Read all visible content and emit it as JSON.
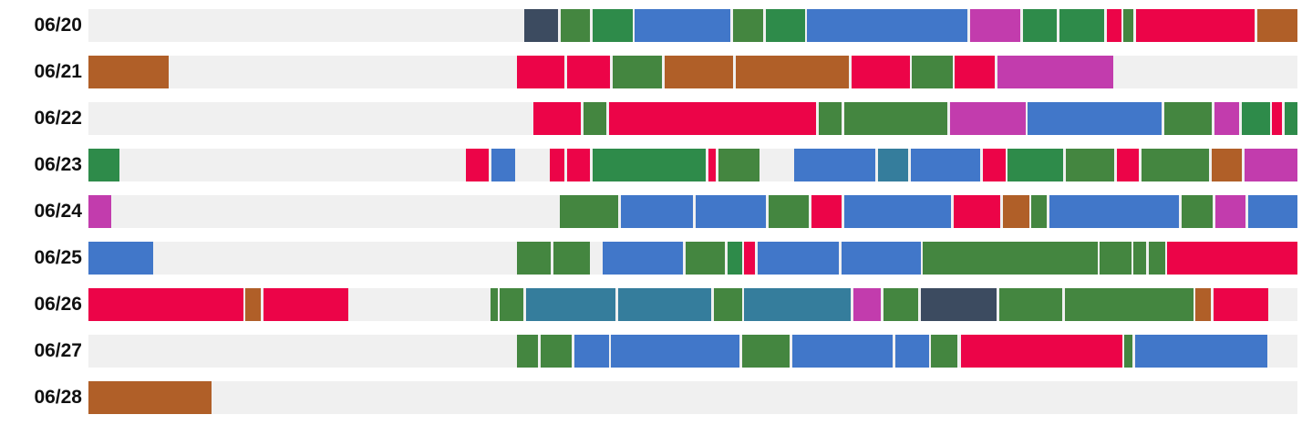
{
  "chart_data": {
    "type": "timeline",
    "x_unit": "hours",
    "xlim": [
      0,
      24
    ],
    "track_color": "#f0f0f0",
    "palette": {
      "red": "#ec0448",
      "green": "#2e8b4a",
      "olive": "#448640",
      "blue": "#4177c9",
      "teal": "#357d9c",
      "magenta": "#c23cad",
      "brown": "#b05f28",
      "slate": "#3c4b60"
    },
    "days": [
      {
        "date": "06/20",
        "segments": [
          {
            "start": 8.65,
            "end": 9.33,
            "color": "slate"
          },
          {
            "start": 9.38,
            "end": 9.95,
            "color": "olive"
          },
          {
            "start": 10.0,
            "end": 10.8,
            "color": "green"
          },
          {
            "start": 10.85,
            "end": 12.75,
            "color": "blue"
          },
          {
            "start": 12.8,
            "end": 13.4,
            "color": "olive"
          },
          {
            "start": 13.45,
            "end": 14.22,
            "color": "green"
          },
          {
            "start": 14.27,
            "end": 17.45,
            "color": "blue"
          },
          {
            "start": 17.5,
            "end": 18.5,
            "color": "magenta"
          },
          {
            "start": 18.55,
            "end": 19.22,
            "color": "green"
          },
          {
            "start": 19.27,
            "end": 20.17,
            "color": "green"
          },
          {
            "start": 20.22,
            "end": 20.5,
            "color": "red"
          },
          {
            "start": 20.55,
            "end": 20.75,
            "color": "olive"
          },
          {
            "start": 20.8,
            "end": 23.15,
            "color": "red"
          },
          {
            "start": 23.2,
            "end": 24.0,
            "color": "brown"
          }
        ]
      },
      {
        "date": "06/21",
        "segments": [
          {
            "start": 0.0,
            "end": 1.6,
            "color": "brown"
          },
          {
            "start": 8.5,
            "end": 9.45,
            "color": "red"
          },
          {
            "start": 9.5,
            "end": 10.35,
            "color": "red"
          },
          {
            "start": 10.4,
            "end": 11.38,
            "color": "olive"
          },
          {
            "start": 11.43,
            "end": 12.8,
            "color": "brown"
          },
          {
            "start": 12.85,
            "end": 15.1,
            "color": "brown"
          },
          {
            "start": 15.15,
            "end": 16.3,
            "color": "red"
          },
          {
            "start": 16.35,
            "end": 17.15,
            "color": "olive"
          },
          {
            "start": 17.2,
            "end": 18.0,
            "color": "red"
          },
          {
            "start": 18.05,
            "end": 20.35,
            "color": "magenta"
          }
        ]
      },
      {
        "date": "06/22",
        "segments": [
          {
            "start": 8.83,
            "end": 9.78,
            "color": "red"
          },
          {
            "start": 9.83,
            "end": 10.28,
            "color": "olive"
          },
          {
            "start": 10.33,
            "end": 14.45,
            "color": "red"
          },
          {
            "start": 14.5,
            "end": 14.95,
            "color": "olive"
          },
          {
            "start": 15.0,
            "end": 17.05,
            "color": "olive"
          },
          {
            "start": 17.1,
            "end": 18.6,
            "color": "magenta"
          },
          {
            "start": 18.65,
            "end": 21.3,
            "color": "blue"
          },
          {
            "start": 21.35,
            "end": 22.3,
            "color": "olive"
          },
          {
            "start": 22.35,
            "end": 22.85,
            "color": "magenta"
          },
          {
            "start": 22.9,
            "end": 23.45,
            "color": "green"
          },
          {
            "start": 23.5,
            "end": 23.7,
            "color": "red"
          },
          {
            "start": 23.75,
            "end": 24.0,
            "color": "green"
          }
        ]
      },
      {
        "date": "06/23",
        "segments": [
          {
            "start": 0.0,
            "end": 0.62,
            "color": "green"
          },
          {
            "start": 7.5,
            "end": 7.95,
            "color": "red"
          },
          {
            "start": 8.0,
            "end": 8.47,
            "color": "blue"
          },
          {
            "start": 9.15,
            "end": 9.45,
            "color": "red"
          },
          {
            "start": 9.5,
            "end": 9.95,
            "color": "red"
          },
          {
            "start": 10.0,
            "end": 12.25,
            "color": "green"
          },
          {
            "start": 12.3,
            "end": 12.45,
            "color": "red"
          },
          {
            "start": 12.5,
            "end": 13.32,
            "color": "olive"
          },
          {
            "start": 14.0,
            "end": 15.62,
            "color": "blue"
          },
          {
            "start": 15.67,
            "end": 16.27,
            "color": "teal"
          },
          {
            "start": 16.32,
            "end": 17.7,
            "color": "blue"
          },
          {
            "start": 17.75,
            "end": 18.2,
            "color": "red"
          },
          {
            "start": 18.25,
            "end": 19.35,
            "color": "green"
          },
          {
            "start": 19.4,
            "end": 20.37,
            "color": "olive"
          },
          {
            "start": 20.42,
            "end": 20.85,
            "color": "red"
          },
          {
            "start": 20.9,
            "end": 22.25,
            "color": "olive"
          },
          {
            "start": 22.3,
            "end": 22.9,
            "color": "brown"
          },
          {
            "start": 22.95,
            "end": 24.0,
            "color": "magenta"
          }
        ]
      },
      {
        "date": "06/24",
        "segments": [
          {
            "start": 0.0,
            "end": 0.45,
            "color": "magenta"
          },
          {
            "start": 9.35,
            "end": 10.52,
            "color": "olive"
          },
          {
            "start": 10.57,
            "end": 12.0,
            "color": "blue"
          },
          {
            "start": 12.05,
            "end": 13.45,
            "color": "blue"
          },
          {
            "start": 13.5,
            "end": 14.3,
            "color": "olive"
          },
          {
            "start": 14.35,
            "end": 14.95,
            "color": "red"
          },
          {
            "start": 15.0,
            "end": 17.13,
            "color": "blue"
          },
          {
            "start": 17.18,
            "end": 18.1,
            "color": "red"
          },
          {
            "start": 18.15,
            "end": 18.67,
            "color": "brown"
          },
          {
            "start": 18.72,
            "end": 19.03,
            "color": "olive"
          },
          {
            "start": 19.08,
            "end": 21.65,
            "color": "blue"
          },
          {
            "start": 21.7,
            "end": 22.32,
            "color": "olive"
          },
          {
            "start": 22.37,
            "end": 22.97,
            "color": "magenta"
          },
          {
            "start": 23.02,
            "end": 24.0,
            "color": "blue"
          }
        ]
      },
      {
        "date": "06/25",
        "segments": [
          {
            "start": 0.0,
            "end": 1.28,
            "color": "blue"
          },
          {
            "start": 8.5,
            "end": 9.18,
            "color": "olive"
          },
          {
            "start": 9.23,
            "end": 9.95,
            "color": "olive"
          },
          {
            "start": 10.2,
            "end": 11.8,
            "color": "blue"
          },
          {
            "start": 11.85,
            "end": 12.63,
            "color": "olive"
          },
          {
            "start": 12.68,
            "end": 12.97,
            "color": "green"
          },
          {
            "start": 13.02,
            "end": 13.23,
            "color": "red"
          },
          {
            "start": 13.28,
            "end": 14.9,
            "color": "blue"
          },
          {
            "start": 14.95,
            "end": 16.52,
            "color": "blue"
          },
          {
            "start": 16.57,
            "end": 20.03,
            "color": "olive"
          },
          {
            "start": 20.08,
            "end": 20.7,
            "color": "olive"
          },
          {
            "start": 20.75,
            "end": 21.0,
            "color": "olive"
          },
          {
            "start": 21.05,
            "end": 21.37,
            "color": "olive"
          },
          {
            "start": 21.42,
            "end": 24.0,
            "color": "red"
          }
        ]
      },
      {
        "date": "06/26",
        "segments": [
          {
            "start": 0.0,
            "end": 3.07,
            "color": "red"
          },
          {
            "start": 3.12,
            "end": 3.42,
            "color": "brown"
          },
          {
            "start": 3.47,
            "end": 5.15,
            "color": "red"
          },
          {
            "start": 7.98,
            "end": 8.12,
            "color": "olive"
          },
          {
            "start": 8.17,
            "end": 8.63,
            "color": "olive"
          },
          {
            "start": 8.68,
            "end": 10.47,
            "color": "teal"
          },
          {
            "start": 10.52,
            "end": 12.37,
            "color": "teal"
          },
          {
            "start": 12.42,
            "end": 12.97,
            "color": "olive"
          },
          {
            "start": 13.02,
            "end": 15.13,
            "color": "teal"
          },
          {
            "start": 15.18,
            "end": 15.73,
            "color": "magenta"
          },
          {
            "start": 15.78,
            "end": 16.47,
            "color": "olive"
          },
          {
            "start": 16.52,
            "end": 18.03,
            "color": "slate"
          },
          {
            "start": 18.08,
            "end": 19.33,
            "color": "olive"
          },
          {
            "start": 19.38,
            "end": 21.93,
            "color": "olive"
          },
          {
            "start": 21.98,
            "end": 22.28,
            "color": "brown"
          },
          {
            "start": 22.33,
            "end": 23.42,
            "color": "red"
          }
        ]
      },
      {
        "date": "06/27",
        "segments": [
          {
            "start": 8.5,
            "end": 8.93,
            "color": "olive"
          },
          {
            "start": 8.98,
            "end": 9.6,
            "color": "olive"
          },
          {
            "start": 9.65,
            "end": 10.33,
            "color": "blue"
          },
          {
            "start": 10.38,
            "end": 12.92,
            "color": "blue"
          },
          {
            "start": 12.97,
            "end": 13.92,
            "color": "olive"
          },
          {
            "start": 13.97,
            "end": 15.97,
            "color": "blue"
          },
          {
            "start": 16.02,
            "end": 16.68,
            "color": "blue"
          },
          {
            "start": 16.73,
            "end": 17.25,
            "color": "olive"
          },
          {
            "start": 17.33,
            "end": 20.52,
            "color": "red"
          },
          {
            "start": 20.57,
            "end": 20.73,
            "color": "olive"
          },
          {
            "start": 20.78,
            "end": 23.4,
            "color": "blue"
          }
        ]
      },
      {
        "date": "06/28",
        "segments": [
          {
            "start": 0.0,
            "end": 2.45,
            "color": "brown"
          }
        ]
      }
    ]
  }
}
